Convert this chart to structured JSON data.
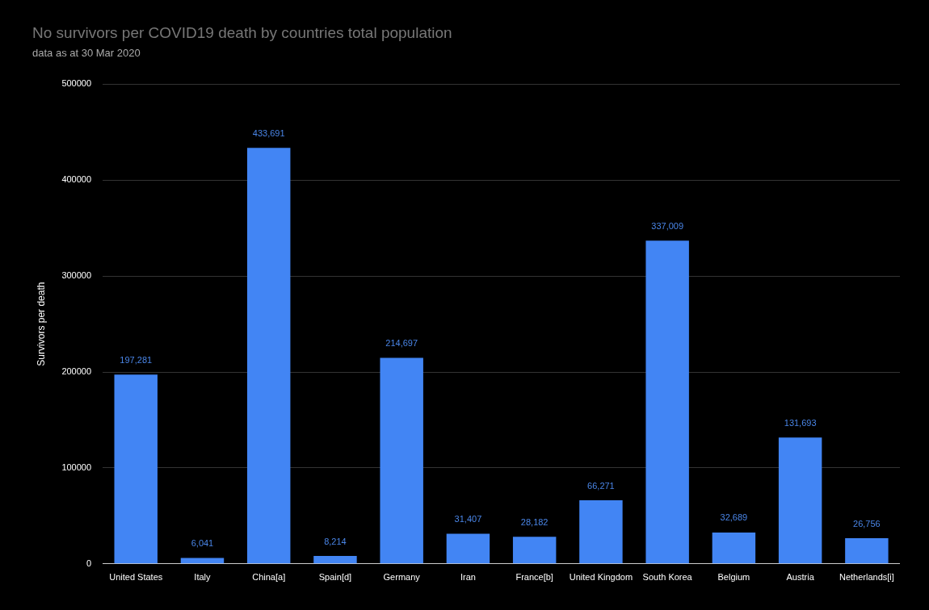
{
  "chart_data": {
    "type": "bar",
    "title": "No survivors per COVID19 death by countries total population",
    "subtitle": "data as at 30 Mar 2020",
    "ylabel": "Survivors per death",
    "categories": [
      "United States",
      "Italy",
      "China[a]",
      "Spain[d]",
      "Germany",
      "Iran",
      "France[b]",
      "United Kingdom",
      "South Korea",
      "Belgium",
      "Austria",
      "Netherlands[i]"
    ],
    "values": [
      197281,
      6041,
      433691,
      8214,
      214697,
      31407,
      28182,
      66271,
      337009,
      32689,
      131693,
      26756
    ],
    "color": "#4285f4",
    "ylim": [
      0,
      500000
    ],
    "yticks": [
      0,
      100000,
      200000,
      300000,
      400000,
      500000
    ],
    "grid": "y",
    "value_labels": [
      "197,281",
      "6,041",
      "433,691",
      "8,214",
      "214,697",
      "31,407",
      "28,182",
      "66,271",
      "337,009",
      "32,689",
      "131,693",
      "26,756"
    ]
  }
}
